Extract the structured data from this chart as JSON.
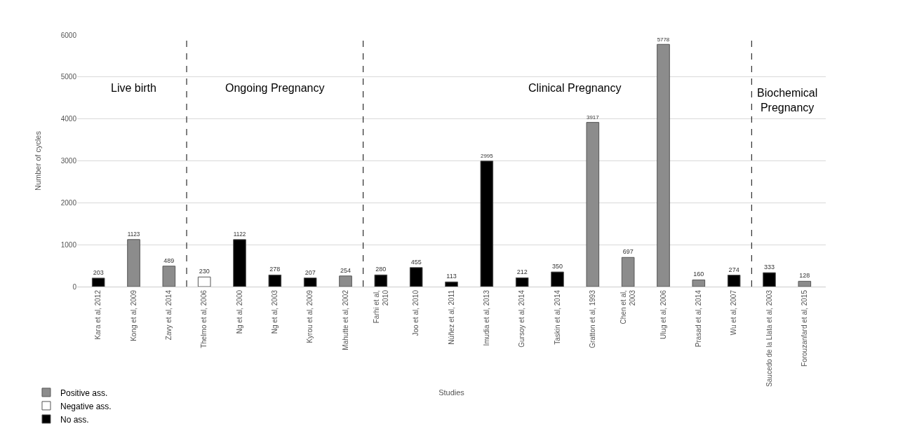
{
  "chart_data": {
    "type": "bar",
    "xlabel": "Studies",
    "ylabel": "Number of cycles",
    "categories": [
      "Kara et al, 2012",
      "Kong et al, 2009",
      "Zavy et al, 2014",
      "Thelmo et al, 2006",
      "Ng et al, 2000",
      "Ng et al, 2003",
      "Kyrou et al, 2009",
      "Mahutte et al, 2002",
      "Farhi et al,\n2010",
      "Joo et al, 2010",
      "Núñez et al, 2011",
      "Imudia et al, 2013",
      "Gursoy et al, 2014",
      "Taskin et al, 2014",
      "Gratton et al, 1993",
      "Chen et al,\n2003",
      "Ulug et al, 2006",
      "Prasad et al, 2014",
      "Wu et al, 2007",
      "Saucedo de la Llata et al, 2003",
      "Forouzanfard et al, 2015"
    ],
    "series": [
      {
        "name": "Positive ass.",
        "color": "#8c8c8c",
        "values": [
          null,
          1123,
          489,
          null,
          null,
          null,
          null,
          254,
          null,
          null,
          null,
          null,
          null,
          null,
          3917,
          697,
          5778,
          160,
          null,
          null,
          128
        ]
      },
      {
        "name": "Negative ass.",
        "color": "#ffffff",
        "values": [
          null,
          null,
          null,
          230,
          null,
          null,
          null,
          null,
          null,
          null,
          null,
          null,
          null,
          null,
          null,
          null,
          null,
          null,
          null,
          null,
          null
        ]
      },
      {
        "name": "No ass.",
        "color": "#000000",
        "values": [
          203,
          null,
          null,
          null,
          1122,
          278,
          207,
          null,
          280,
          455,
          113,
          2995,
          212,
          350,
          null,
          null,
          null,
          null,
          274,
          333,
          null
        ]
      }
    ],
    "ylim": [
      0,
      6000
    ],
    "yticks": [
      0,
      1000,
      2000,
      3000,
      4000,
      5000,
      6000
    ],
    "grid": "y",
    "legend": "bottom left",
    "data_labels": true,
    "annotations": [
      "Live birth",
      "Ongoing Pregnancy",
      "Clinical Pregnancy",
      "Biochemical\nPregnancy"
    ]
  }
}
